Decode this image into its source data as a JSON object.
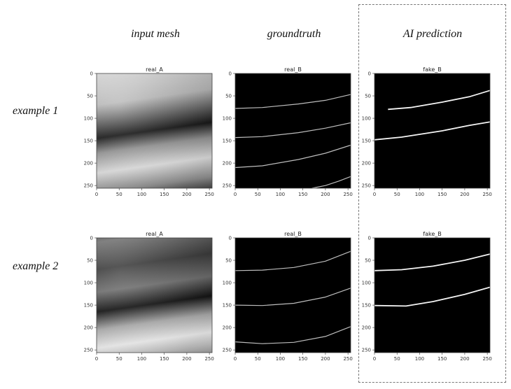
{
  "columns": [
    {
      "title": "input mesh"
    },
    {
      "title": "groundtruth"
    },
    {
      "title": "AI prediction"
    }
  ],
  "rows": [
    {
      "label": "example 1"
    },
    {
      "label": "example 2"
    }
  ],
  "panels": [
    {
      "title": "real_A",
      "kind": "mesh",
      "variant": 1
    },
    {
      "title": "real_B",
      "kind": "lines",
      "variant": "gt1"
    },
    {
      "title": "fake_B",
      "kind": "lines",
      "variant": "pred1"
    },
    {
      "title": "real_A",
      "kind": "mesh",
      "variant": 2
    },
    {
      "title": "real_B",
      "kind": "lines",
      "variant": "gt2"
    },
    {
      "title": "fake_B",
      "kind": "lines",
      "variant": "pred2"
    }
  ],
  "axis": {
    "xticks": [
      "0",
      "50",
      "100",
      "150",
      "200",
      "250"
    ],
    "yticks": [
      "0",
      "50",
      "100",
      "150",
      "200",
      "250"
    ]
  }
}
